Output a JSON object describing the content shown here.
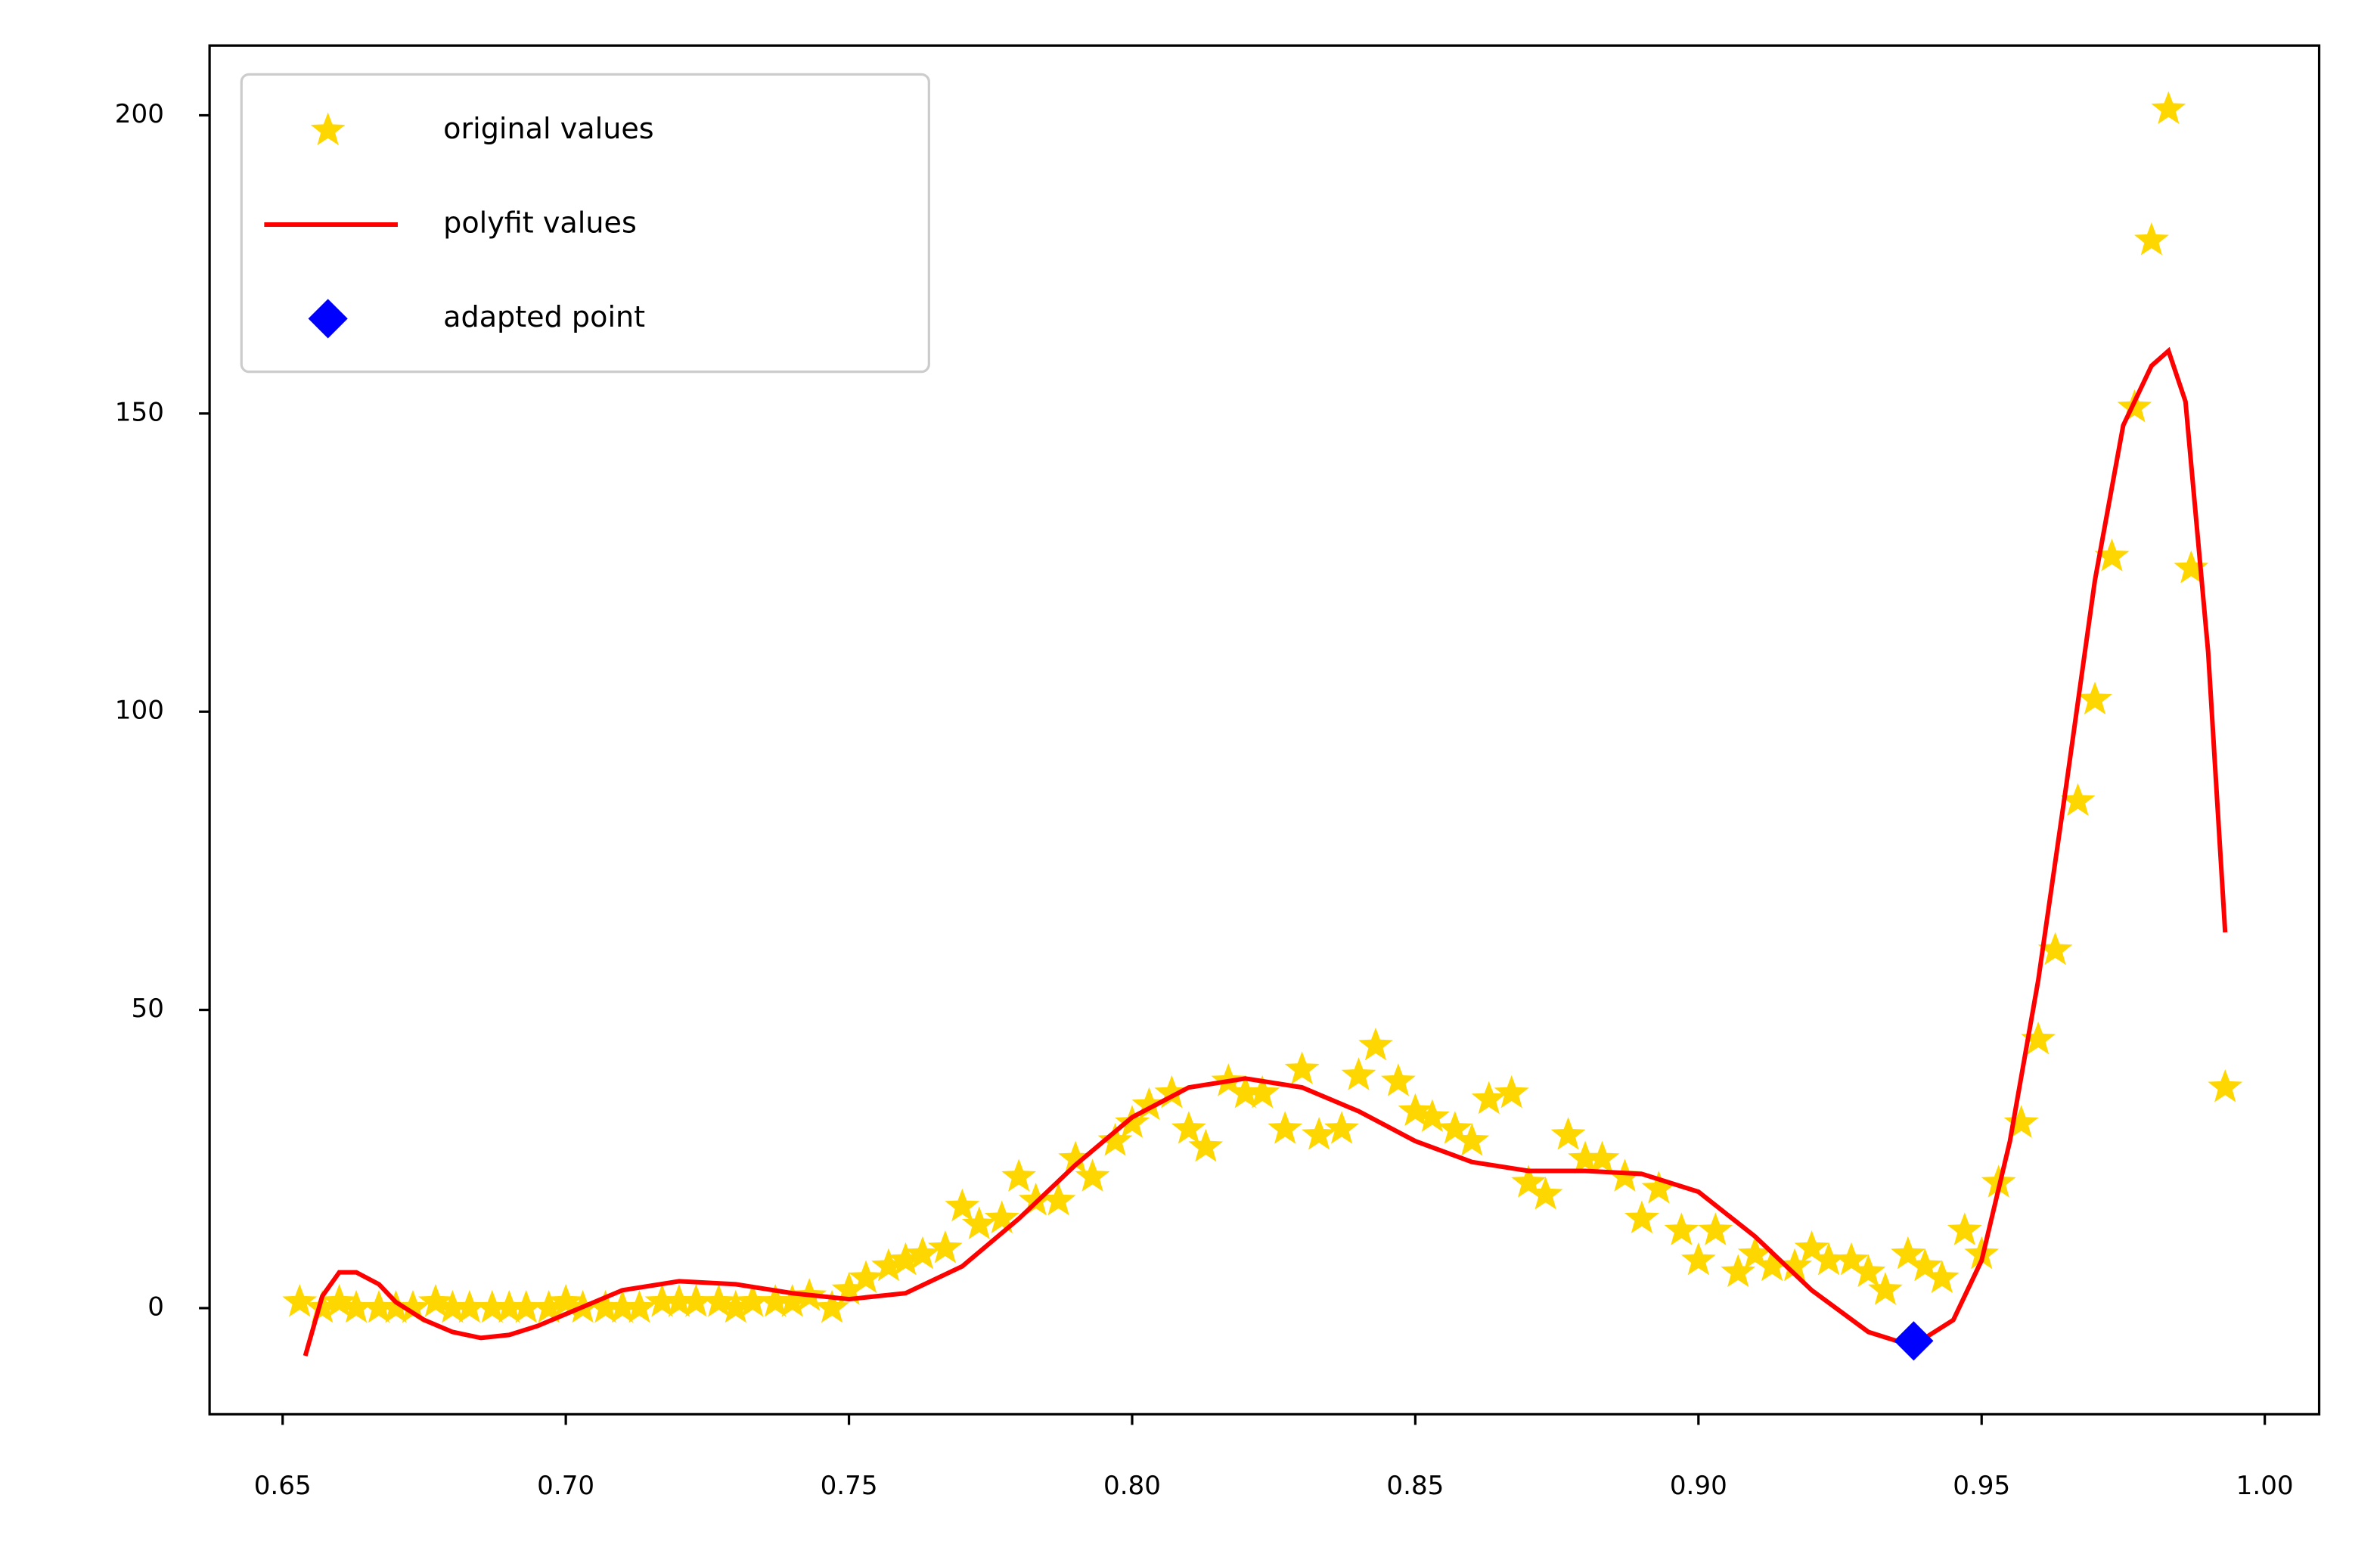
{
  "chart_data": {
    "type": "line",
    "xlim": [
      0.6371,
      1.0096
    ],
    "ylim": [
      -17.8,
      211.7
    ],
    "xticks": [
      0.65,
      {
        "value": 0.7,
        "label": "0.70"
      },
      0.75,
      {
        "value": 0.8,
        "label": "0.80"
      },
      0.85,
      {
        "value": 0.9,
        "label": "0.90"
      },
      0.95,
      {
        "value": 1.0,
        "label": "1.00"
      }
    ],
    "yticks": [
      0,
      50,
      100,
      150,
      200
    ],
    "legend": "upper left",
    "series": [
      {
        "name": "original values",
        "style": "star",
        "color": "#ffd700",
        "x": [
          0.653,
          0.657,
          0.66,
          0.663,
          0.667,
          0.67,
          0.673,
          0.677,
          0.68,
          0.683,
          0.687,
          0.69,
          0.693,
          0.697,
          0.7,
          0.703,
          0.707,
          0.71,
          0.713,
          0.717,
          0.72,
          0.723,
          0.727,
          0.73,
          0.733,
          0.737,
          0.74,
          0.743,
          0.747,
          0.75,
          0.753,
          0.757,
          0.76,
          0.763,
          0.767,
          0.77,
          0.773,
          0.777,
          0.78,
          0.783,
          0.787,
          0.79,
          0.793,
          0.797,
          0.8,
          0.803,
          0.807,
          0.81,
          0.813,
          0.817,
          0.82,
          0.823,
          0.827,
          0.83,
          0.833,
          0.837,
          0.84,
          0.843,
          0.847,
          0.85,
          0.853,
          0.857,
          0.86,
          0.863,
          0.867,
          0.87,
          0.873,
          0.877,
          0.88,
          0.883,
          0.887,
          0.89,
          0.893,
          0.897,
          0.9,
          0.903,
          0.907,
          0.91,
          0.913,
          0.917,
          0.92,
          0.923,
          0.927,
          0.93,
          0.933,
          0.937,
          0.94,
          0.943,
          0.947,
          0.95,
          0.953,
          0.957,
          0.96,
          0.963,
          0.967,
          0.97,
          0.973,
          0.977,
          0.98,
          0.983,
          0.987,
          0.993
        ],
        "y": [
          1,
          0,
          1,
          0,
          0,
          0,
          0,
          1,
          0,
          0,
          0,
          0,
          0,
          0,
          1,
          0,
          0,
          0,
          0,
          1,
          1,
          1,
          1,
          0,
          1,
          1,
          1,
          2,
          0,
          3,
          5,
          7,
          8,
          9,
          10,
          17,
          14,
          15,
          22,
          18,
          18,
          25,
          22,
          28,
          31,
          34,
          36,
          30,
          27,
          38,
          36,
          36,
          30,
          40,
          29,
          30,
          39,
          44,
          38,
          33,
          32,
          30,
          28,
          35,
          36,
          21,
          19,
          29,
          25,
          25,
          22,
          15,
          20,
          13,
          8,
          13,
          6,
          9,
          7,
          7,
          10,
          8,
          8,
          6,
          3,
          9,
          7,
          5,
          13,
          9,
          21,
          31,
          45,
          60,
          85,
          102,
          126,
          151,
          179,
          201,
          124,
          37
        ]
      },
      {
        "name": "polyfit values",
        "style": "line",
        "color": "#ff0000",
        "x": [
          0.654,
          0.657,
          0.66,
          0.663,
          0.667,
          0.67,
          0.675,
          0.68,
          0.685,
          0.69,
          0.695,
          0.7,
          0.71,
          0.72,
          0.73,
          0.74,
          0.75,
          0.76,
          0.77,
          0.78,
          0.79,
          0.8,
          0.81,
          0.82,
          0.83,
          0.84,
          0.85,
          0.86,
          0.87,
          0.88,
          0.89,
          0.9,
          0.91,
          0.92,
          0.93,
          0.935,
          0.94,
          0.945,
          0.95,
          0.955,
          0.96,
          0.965,
          0.97,
          0.975,
          0.98,
          0.983,
          0.986,
          0.99,
          0.993
        ],
        "y": [
          -8,
          2,
          6,
          6,
          4,
          1,
          -2,
          -4,
          -5,
          -4.5,
          -3,
          -1,
          3,
          4.5,
          4,
          2.5,
          1.5,
          2.5,
          7,
          15,
          24,
          32,
          37,
          38.5,
          37,
          33,
          28,
          24.5,
          23,
          23,
          22.5,
          19.5,
          12,
          3,
          -4,
          -5.5,
          -5,
          -2,
          8,
          28,
          55,
          88,
          122,
          148,
          158,
          160.5,
          152,
          110,
          63
        ]
      },
      {
        "name": "adapted point",
        "style": "diamond",
        "color": "#0000ff",
        "x": [
          0.938
        ],
        "y": [
          -5.5
        ]
      }
    ]
  }
}
